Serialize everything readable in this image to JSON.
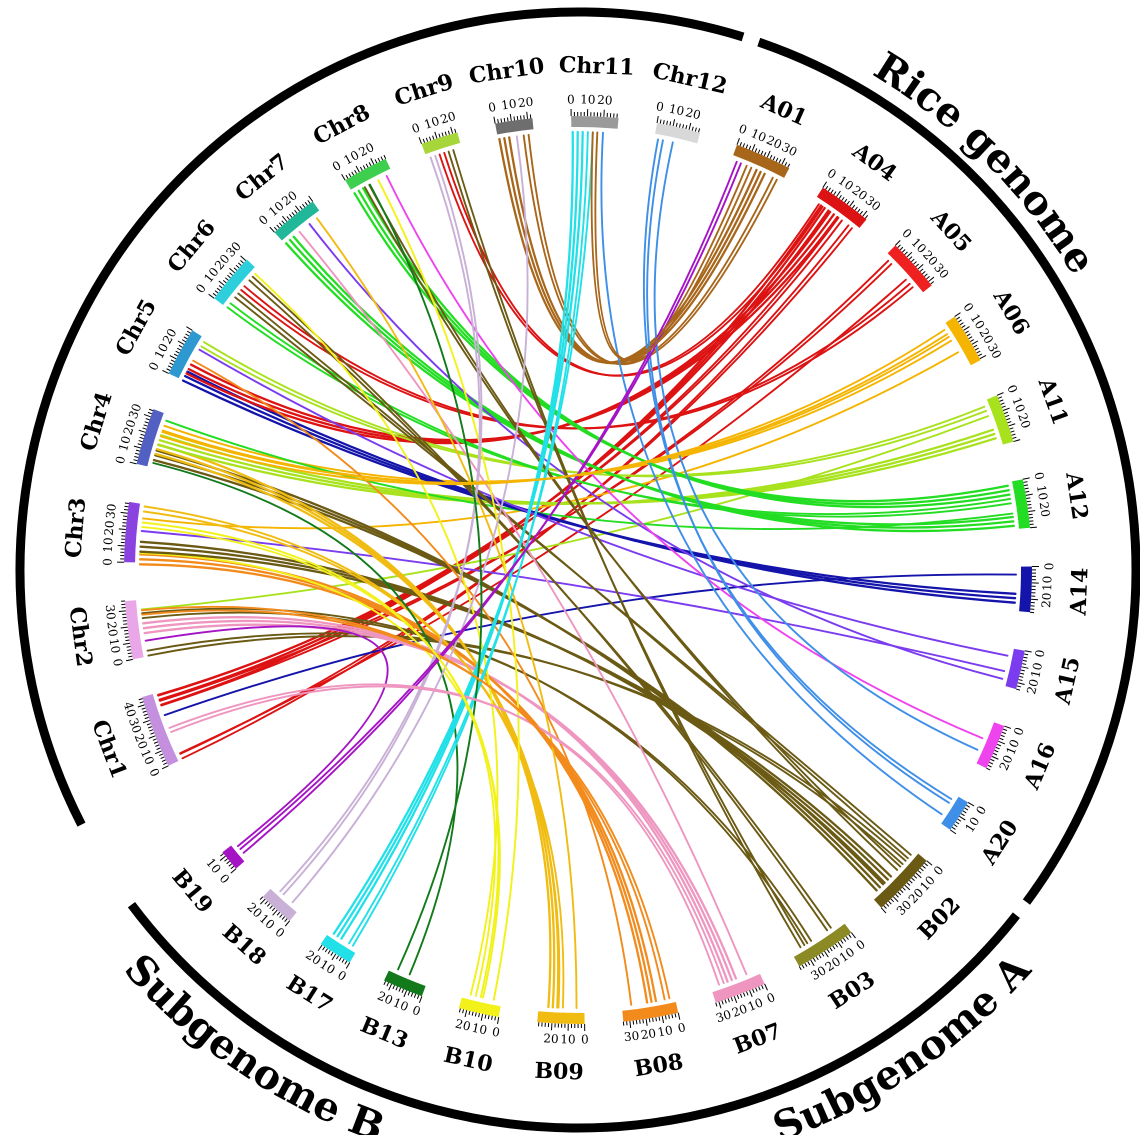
{
  "groups": [
    {
      "id": "rice",
      "label": "Rice genome"
    },
    {
      "id": "subA",
      "label": "Subgenome A"
    },
    {
      "id": "subB",
      "label": "Subgenome B"
    }
  ],
  "chromosomes": [
    {
      "id": "Chr1",
      "label": "Chr1",
      "length": 45,
      "ticks": [
        0,
        10,
        20,
        30,
        40
      ],
      "color": "#c58fe0"
    },
    {
      "id": "Chr2",
      "label": "Chr2",
      "length": 36,
      "ticks": [
        0,
        10,
        20,
        30
      ],
      "color": "#e9a6e8"
    },
    {
      "id": "Chr3",
      "label": "Chr3",
      "length": 37,
      "ticks": [
        0,
        10,
        20,
        30
      ],
      "color": "#8a42e0"
    },
    {
      "id": "Chr4",
      "label": "Chr4",
      "length": 35,
      "ticks": [
        0,
        10,
        20,
        30
      ],
      "color": "#5260c4"
    },
    {
      "id": "Chr5",
      "label": "Chr5",
      "length": 30,
      "ticks": [
        0,
        10,
        20
      ],
      "color": "#2e98d0"
    },
    {
      "id": "Chr6",
      "label": "Chr6",
      "length": 31,
      "ticks": [
        0,
        10,
        20,
        30
      ],
      "color": "#2ccfdb"
    },
    {
      "id": "Chr7",
      "label": "Chr7",
      "length": 30,
      "ticks": [
        0,
        10,
        20
      ],
      "color": "#20b898"
    },
    {
      "id": "Chr8",
      "label": "Chr8",
      "length": 28,
      "ticks": [
        0,
        10,
        20
      ],
      "color": "#3fcf4f"
    },
    {
      "id": "Chr9",
      "label": "Chr9",
      "length": 23,
      "ticks": [
        0,
        10,
        20
      ],
      "color": "#a6d63a"
    },
    {
      "id": "Chr10",
      "label": "Chr10",
      "length": 23,
      "ticks": [
        0,
        10,
        20
      ],
      "color": "#6e6e6e"
    },
    {
      "id": "Chr11",
      "label": "Chr11",
      "length": 29,
      "ticks": [
        0,
        10,
        20
      ],
      "color": "#9a9a9a"
    },
    {
      "id": "Chr12",
      "label": "Chr12",
      "length": 27,
      "ticks": [
        0,
        10,
        20
      ],
      "color": "#d8d8d8"
    },
    {
      "id": "A01",
      "label": "A01",
      "length": 35,
      "ticks": [
        0,
        10,
        20,
        30
      ],
      "color": "#a8661a"
    },
    {
      "id": "A04",
      "label": "A04",
      "length": 33,
      "ticks": [
        0,
        10,
        20,
        30
      ],
      "color": "#dd1212"
    },
    {
      "id": "A05",
      "label": "A05",
      "length": 33,
      "ticks": [
        0,
        10,
        20,
        30
      ],
      "color": "#ee2020"
    },
    {
      "id": "A06",
      "label": "A06",
      "length": 31,
      "ticks": [
        0,
        10,
        20,
        30
      ],
      "color": "#f4b400"
    },
    {
      "id": "A11",
      "label": "A11",
      "length": 30,
      "ticks": [
        0,
        10,
        20
      ],
      "color": "#a8e21c"
    },
    {
      "id": "A12",
      "label": "A12",
      "length": 30,
      "ticks": [
        0,
        10,
        20
      ],
      "color": "#22dd22"
    },
    {
      "id": "A14",
      "label": "A14",
      "length": 28,
      "ticks": [
        0,
        10,
        20
      ],
      "color": "#1414aa"
    },
    {
      "id": "A15",
      "label": "A15",
      "length": 24,
      "ticks": [
        0,
        10,
        20
      ],
      "color": "#7a3cee"
    },
    {
      "id": "A16",
      "label": "A16",
      "length": 28,
      "ticks": [
        0,
        10,
        20
      ],
      "color": "#ee44ee"
    },
    {
      "id": "A20",
      "label": "A20",
      "length": 20,
      "ticks": [
        0,
        10
      ],
      "color": "#3f8fe8"
    },
    {
      "id": "B02",
      "label": "B02",
      "length": 40,
      "ticks": [
        0,
        10,
        20,
        30
      ],
      "color": "#6b5a14"
    },
    {
      "id": "B03",
      "label": "B03",
      "length": 38,
      "ticks": [
        0,
        10,
        20,
        30
      ],
      "color": "#8c8a24"
    },
    {
      "id": "B07",
      "label": "B07",
      "length": 32,
      "ticks": [
        0,
        10,
        20,
        30
      ],
      "color": "#ee96c0"
    },
    {
      "id": "B08",
      "label": "B08",
      "length": 34,
      "ticks": [
        0,
        10,
        20,
        30
      ],
      "color": "#f28b1c"
    },
    {
      "id": "B09",
      "label": "B09",
      "length": 29,
      "ticks": [
        0,
        10,
        20
      ],
      "color": "#f0bc12"
    },
    {
      "id": "B10",
      "label": "B10",
      "length": 25,
      "ticks": [
        0,
        10,
        20
      ],
      "color": "#f2f21a"
    },
    {
      "id": "B13",
      "label": "B13",
      "length": 25,
      "ticks": [
        0,
        10,
        20
      ],
      "color": "#127a1a"
    },
    {
      "id": "B17",
      "label": "B17",
      "length": 21,
      "ticks": [
        0,
        10,
        20
      ],
      "color": "#22e0e8"
    },
    {
      "id": "B18",
      "label": "B18",
      "length": 22,
      "ticks": [
        0,
        10,
        20
      ],
      "color": "#c8b0d6"
    },
    {
      "id": "B19",
      "label": "B19",
      "length": 13,
      "ticks": [
        0,
        10
      ],
      "color": "#a414c4"
    }
  ],
  "links": [
    {
      "from": [
        "Chr1",
        40
      ],
      "to": [
        "A04",
        8
      ],
      "color": "#dd1212",
      "count": 3
    },
    {
      "from": [
        "Chr1",
        38
      ],
      "to": [
        "A05",
        5
      ],
      "color": "#dd1212",
      "count": 2
    },
    {
      "from": [
        "Chr1",
        42
      ],
      "to": [
        "A04",
        20
      ],
      "color": "#dd1212",
      "count": 2
    },
    {
      "from": [
        "Chr1",
        2
      ],
      "to": [
        "A04",
        28
      ],
      "color": "#dd1212",
      "count": 2
    },
    {
      "from": [
        "Chr1",
        4
      ],
      "to": [
        "A05",
        20
      ],
      "color": "#dd1212",
      "count": 1
    },
    {
      "from": [
        "Chr1",
        30
      ],
      "to": [
        "A14",
        5
      ],
      "color": "#1414aa",
      "count": 1
    },
    {
      "from": [
        "Chr2",
        2
      ],
      "to": [
        "B02",
        10
      ],
      "color": "#6b5a14",
      "count": 2
    },
    {
      "from": [
        "Chr2",
        18
      ],
      "to": [
        "B07",
        18
      ],
      "color": "#ee96c0",
      "count": 3
    },
    {
      "from": [
        "Chr2",
        26
      ],
      "to": [
        "B03",
        25
      ],
      "color": "#6b5a14",
      "count": 2
    },
    {
      "from": [
        "Chr2",
        30
      ],
      "to": [
        "A11",
        10
      ],
      "color": "#a8e21c",
      "count": 1
    },
    {
      "from": [
        "Chr3",
        2
      ],
      "to": [
        "B08",
        15
      ],
      "color": "#f28b1c",
      "count": 3
    },
    {
      "from": [
        "Chr3",
        6
      ],
      "to": [
        "B10",
        12
      ],
      "color": "#f2f21a",
      "count": 1
    },
    {
      "from": [
        "Chr3",
        10
      ],
      "to": [
        "B02",
        25
      ],
      "color": "#6b5a14",
      "count": 3
    },
    {
      "from": [
        "Chr3",
        20
      ],
      "to": [
        "A15",
        15
      ],
      "color": "#7a3cee",
      "count": 1
    },
    {
      "from": [
        "Chr3",
        28
      ],
      "to": [
        "A06",
        20
      ],
      "color": "#f4b400",
      "count": 1
    },
    {
      "from": [
        "Chr3",
        34
      ],
      "to": [
        "B09",
        15
      ],
      "color": "#f0bc12",
      "count": 2
    },
    {
      "from": [
        "Chr4",
        3
      ],
      "to": [
        "B13",
        12
      ],
      "color": "#127a1a",
      "count": 1
    },
    {
      "from": [
        "Chr4",
        8
      ],
      "to": [
        "B02",
        32
      ],
      "color": "#6b5a14",
      "count": 3
    },
    {
      "from": [
        "Chr4",
        12
      ],
      "to": [
        "B09",
        20
      ],
      "color": "#f0bc12",
      "count": 3
    },
    {
      "from": [
        "Chr4",
        18
      ],
      "to": [
        "A11",
        22
      ],
      "color": "#a8e21c",
      "count": 3
    },
    {
      "from": [
        "Chr4",
        26
      ],
      "to": [
        "A06",
        10
      ],
      "color": "#f4b400",
      "count": 2
    },
    {
      "from": [
        "Chr4",
        31
      ],
      "to": [
        "A12",
        20
      ],
      "color": "#22dd22",
      "count": 1
    },
    {
      "from": [
        "Chr5",
        3
      ],
      "to": [
        "A14",
        20
      ],
      "color": "#1414aa",
      "count": 3
    },
    {
      "from": [
        "Chr5",
        8
      ],
      "to": [
        "A04",
        15
      ],
      "color": "#dd1212",
      "count": 3
    },
    {
      "from": [
        "Chr5",
        14
      ],
      "to": [
        "B08",
        28
      ],
      "color": "#f28b1c",
      "count": 1
    },
    {
      "from": [
        "Chr5",
        22
      ],
      "to": [
        "A15",
        5
      ],
      "color": "#7a3cee",
      "count": 1
    },
    {
      "from": [
        "Chr5",
        26
      ],
      "to": [
        "A11",
        5
      ],
      "color": "#a8e21c",
      "count": 2
    },
    {
      "from": [
        "Chr6",
        2
      ],
      "to": [
        "A12",
        12
      ],
      "color": "#22dd22",
      "count": 2
    },
    {
      "from": [
        "Chr6",
        10
      ],
      "to": [
        "B02",
        5
      ],
      "color": "#6b5a14",
      "count": 2
    },
    {
      "from": [
        "Chr6",
        16
      ],
      "to": [
        "A05",
        25
      ],
      "color": "#dd1212",
      "count": 2
    },
    {
      "from": [
        "Chr6",
        24
      ],
      "to": [
        "B03",
        10
      ],
      "color": "#6b5a14",
      "count": 2
    },
    {
      "from": [
        "Chr6",
        28
      ],
      "to": [
        "B10",
        20
      ],
      "color": "#f2f21a",
      "count": 1
    },
    {
      "from": [
        "Chr7",
        4
      ],
      "to": [
        "A12",
        25
      ],
      "color": "#22dd22",
      "count": 3
    },
    {
      "from": [
        "Chr7",
        12
      ],
      "to": [
        "B07",
        8
      ],
      "color": "#ee96c0",
      "count": 1
    },
    {
      "from": [
        "Chr7",
        20
      ],
      "to": [
        "A15",
        20
      ],
      "color": "#7a3cee",
      "count": 1
    },
    {
      "from": [
        "Chr7",
        26
      ],
      "to": [
        "B09",
        5
      ],
      "color": "#f0bc12",
      "count": 1
    },
    {
      "from": [
        "Chr8",
        4
      ],
      "to": [
        "A12",
        5
      ],
      "color": "#22dd22",
      "count": 3
    },
    {
      "from": [
        "Chr8",
        10
      ],
      "to": [
        "B02",
        15
      ],
      "color": "#6b5a14",
      "count": 2
    },
    {
      "from": [
        "Chr8",
        18
      ],
      "to": [
        "B10",
        5
      ],
      "color": "#f2f21a",
      "count": 1
    },
    {
      "from": [
        "Chr8",
        24
      ],
      "to": [
        "A16",
        12
      ],
      "color": "#ee44ee",
      "count": 1
    },
    {
      "from": [
        "Chr9",
        4
      ],
      "to": [
        "B18",
        15
      ],
      "color": "#c8b0d6",
      "count": 2
    },
    {
      "from": [
        "Chr9",
        10
      ],
      "to": [
        "A04",
        5
      ],
      "color": "#dd1212",
      "count": 2
    },
    {
      "from": [
        "Chr9",
        16
      ],
      "to": [
        "B03",
        30
      ],
      "color": "#6b5a14",
      "count": 2
    },
    {
      "from": [
        "Chr10",
        4
      ],
      "to": [
        "A01",
        20
      ],
      "color": "#a8661a",
      "count": 3
    },
    {
      "from": [
        "Chr10",
        12
      ],
      "to": [
        "B18",
        6
      ],
      "color": "#c8b0d6",
      "count": 1
    },
    {
      "from": [
        "Chr10",
        18
      ],
      "to": [
        "A01",
        30
      ],
      "color": "#a8661a",
      "count": 2
    },
    {
      "from": [
        "Chr11",
        4
      ],
      "to": [
        "B17",
        15
      ],
      "color": "#22e0e8",
      "count": 3
    },
    {
      "from": [
        "Chr11",
        12
      ],
      "to": [
        "B17",
        5
      ],
      "color": "#22e0e8",
      "count": 2
    },
    {
      "from": [
        "Chr11",
        20
      ],
      "to": [
        "A20",
        15
      ],
      "color": "#3f8fe8",
      "count": 1
    },
    {
      "from": [
        "Chr12",
        4
      ],
      "to": [
        "A20",
        5
      ],
      "color": "#3f8fe8",
      "count": 2
    },
    {
      "from": [
        "Chr12",
        12
      ],
      "to": [
        "A16",
        20
      ],
      "color": "#3f8fe8",
      "count": 1
    },
    {
      "from": [
        "B19",
        6
      ],
      "to": [
        "A01",
        5
      ],
      "color": "#a414c4",
      "count": 2
    },
    {
      "from": [
        "B19",
        10
      ],
      "to": [
        "Chr2",
        10
      ],
      "color": "#a414c4",
      "count": 1
    },
    {
      "from": [
        "B13",
        20
      ],
      "to": [
        "Chr8",
        12
      ],
      "color": "#127a1a",
      "count": 1
    },
    {
      "from": [
        "B07",
        25
      ],
      "to": [
        "Chr1",
        20
      ],
      "color": "#ee96c0",
      "count": 2
    },
    {
      "from": [
        "B08",
        5
      ],
      "to": [
        "Chr2",
        28
      ],
      "color": "#f28b1c",
      "count": 2
    },
    {
      "from": [
        "B10",
        15
      ],
      "to": [
        "Chr3",
        24
      ],
      "color": "#f2f21a",
      "count": 2
    },
    {
      "from": [
        "A01",
        12
      ],
      "to": [
        "Chr11",
        15
      ],
      "color": "#a8661a",
      "count": 2
    },
    {
      "from": [
        "A06",
        5
      ],
      "to": [
        "Chr4",
        22
      ],
      "color": "#f4b400",
      "count": 2
    }
  ]
}
